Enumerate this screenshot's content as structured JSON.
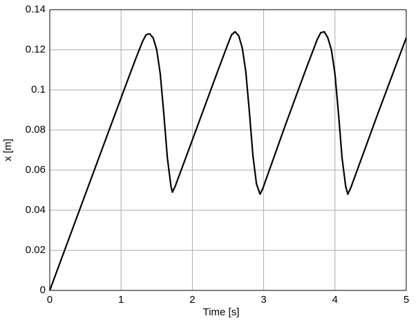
{
  "chart_data": {
    "type": "line",
    "x_label": "Time [s]",
    "y_label": "x [m]",
    "xlim": [
      0,
      5
    ],
    "xticks": [
      0,
      1,
      2,
      3,
      4,
      5
    ],
    "ylim": [
      0,
      0.14
    ],
    "yticks": [
      0,
      0.02,
      0.04,
      0.06,
      0.08,
      0.1,
      0.12,
      0.14
    ],
    "grid": true,
    "x": [
      0,
      0.5,
      1.0,
      1.2,
      1.3,
      1.35,
      1.4,
      1.45,
      1.5,
      1.55,
      1.6,
      1.65,
      1.7,
      1.72,
      1.76,
      2.0,
      2.3,
      2.5,
      2.55,
      2.6,
      2.65,
      2.7,
      2.75,
      2.8,
      2.85,
      2.9,
      2.95,
      2.99,
      3.3,
      3.6,
      3.75,
      3.8,
      3.85,
      3.9,
      3.95,
      4.0,
      4.05,
      4.1,
      4.15,
      4.18,
      4.22,
      4.6,
      5.0
    ],
    "series": [
      {
        "color": "#000000",
        "values": [
          0,
          0.048,
          0.096,
          0.115,
          0.124,
          0.1275,
          0.128,
          0.126,
          0.12,
          0.108,
          0.088,
          0.066,
          0.052,
          0.049,
          0.052,
          0.075,
          0.104,
          0.123,
          0.1275,
          0.129,
          0.127,
          0.121,
          0.109,
          0.089,
          0.067,
          0.053,
          0.048,
          0.051,
          0.082,
          0.111,
          0.125,
          0.1285,
          0.129,
          0.126,
          0.12,
          0.108,
          0.088,
          0.066,
          0.052,
          0.048,
          0.051,
          0.088,
          0.126
        ]
      }
    ]
  }
}
